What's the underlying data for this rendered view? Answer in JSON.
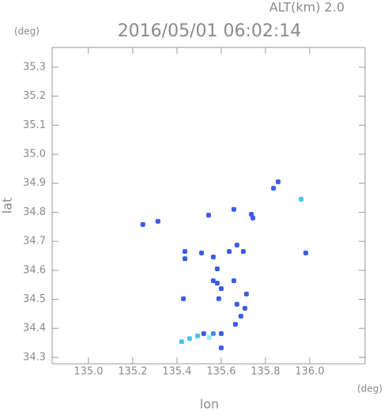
{
  "chart_data": {
    "type": "scatter",
    "title": "2016/05/01 06:02:14",
    "annotation": "ALT(km) 2.0",
    "xlabel": "lon",
    "ylabel": "lat",
    "xunit": "(deg)",
    "yunit": "(deg)",
    "x": [
      135.246,
      135.314,
      135.543,
      135.657,
      135.736,
      135.743,
      135.836,
      135.857,
      135.961,
      135.982,
      135.436,
      135.436,
      135.511,
      135.564,
      135.636,
      135.7,
      135.671,
      135.582,
      135.582,
      135.564,
      135.6,
      135.657,
      135.589,
      135.429,
      135.671,
      135.714,
      135.707,
      135.689,
      135.664,
      135.521,
      135.564,
      135.6,
      135.457,
      135.421,
      135.493,
      135.6,
      135.546
    ],
    "values": [
      34.758,
      34.769,
      34.79,
      34.81,
      34.793,
      34.78,
      34.883,
      34.905,
      34.845,
      34.66,
      34.665,
      34.64,
      34.66,
      34.646,
      34.665,
      34.665,
      34.687,
      34.605,
      34.556,
      34.564,
      34.537,
      34.564,
      34.502,
      34.502,
      34.483,
      34.518,
      34.469,
      34.442,
      34.414,
      34.382,
      34.382,
      34.382,
      34.365,
      34.354,
      34.374,
      34.333,
      34.368
    ],
    "colors": [
      "#3a5ce8",
      "#3a5ce8",
      "#3a5ce8",
      "#3a5ce8",
      "#3a5ce8",
      "#3a5ce8",
      "#3a5ce8",
      "#3a5ce8",
      "#40c8f0",
      "#3a5ce8",
      "#3a5ce8",
      "#3a5ce8",
      "#3a5ce8",
      "#3a5ce8",
      "#3a5ce8",
      "#3a5ce8",
      "#3a5ce8",
      "#3a5ce8",
      "#3a5ce8",
      "#3a5ce8",
      "#3a5ce8",
      "#3a5ce8",
      "#3a5ce8",
      "#3a5ce8",
      "#3a5ce8",
      "#3a5ce8",
      "#3a5ce8",
      "#3a5ce8",
      "#3a5ce8",
      "#3a5ce8",
      "#3a8ef0",
      "#3a5ce8",
      "#40c8f0",
      "#40c8f0",
      "#40c8f0",
      "#3a5ce8",
      "#9fe8f8"
    ],
    "xlim": [
      134.836,
      136.25
    ],
    "ylim": [
      34.278,
      35.368
    ],
    "xticks": [
      {
        "value": 135.0,
        "label": "135.0"
      },
      135.2,
      135.4,
      135.6,
      135.8,
      {
        "value": 136.0,
        "label": "136.0"
      }
    ],
    "yticks": [
      34.3,
      34.4,
      34.5,
      34.6,
      34.7,
      34.8,
      34.9,
      {
        "value": 35.0,
        "label": "35.0"
      },
      35.1,
      35.2,
      35.3
    ]
  }
}
